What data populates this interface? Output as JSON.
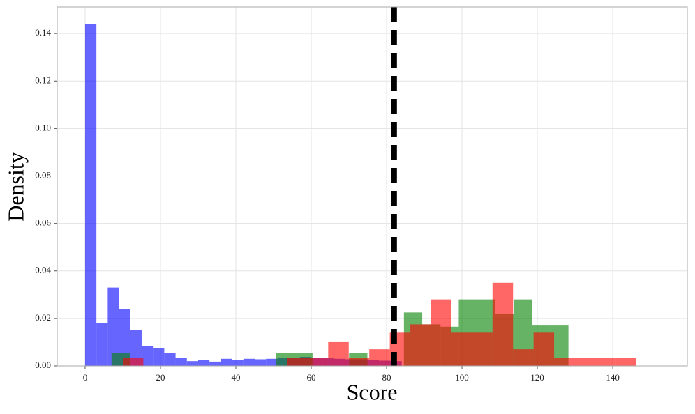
{
  "chart_data": {
    "type": "histogram",
    "x_label": "Score",
    "y_label": "Density",
    "xlim": [
      -7.4,
      159.8
    ],
    "ylim": [
      0,
      0.1512
    ],
    "xticks": [
      0,
      20,
      40,
      60,
      80,
      100,
      120,
      140
    ],
    "yticks": [
      {
        "value": 0,
        "label": "0.00"
      },
      0.02,
      0.04,
      0.06,
      0.08,
      {
        "value": 0.1,
        "label": "0.10"
      },
      0.12,
      0.14
    ],
    "grid": true,
    "alpha": 0.6,
    "reference_line": {
      "x": 82,
      "color": "#000000",
      "style": "dashed"
    },
    "series": [
      {
        "color": "#0000ff",
        "bins": [
          0,
          3,
          6,
          9,
          12,
          15,
          18,
          21,
          24,
          27,
          30,
          33,
          36,
          39,
          42,
          45,
          48,
          51,
          54,
          57,
          60,
          63,
          66,
          69,
          72,
          75,
          78,
          81,
          84
        ],
        "values": [
          0.144,
          0.018,
          0.033,
          0.024,
          0.015,
          0.0085,
          0.0075,
          0.0055,
          0.0035,
          0.002,
          0.0025,
          0.0018,
          0.003,
          0.0025,
          0.003,
          0.0028,
          0.003,
          0.0035,
          0.0035,
          0.0038,
          0.0035,
          0.0032,
          0.003,
          0.0028,
          0.0028,
          0.0025,
          0.0022,
          0.002
        ]
      },
      {
        "color": "#008000",
        "bins": [
          7,
          11.85,
          16.7,
          21.55,
          26.4,
          31.25,
          36.1,
          40.95,
          45.8,
          50.65,
          55.5,
          60.35,
          65.2,
          70.05,
          74.9,
          79.75,
          84.6,
          89.45,
          94.3,
          99.15,
          104,
          108.85,
          113.7,
          118.55,
          123.4,
          128.25
        ],
        "values": [
          0.0055,
          0,
          0,
          0,
          0,
          0,
          0,
          0,
          0,
          0.0055,
          0.0055,
          0,
          0,
          0.0055,
          0,
          0,
          0.0225,
          0.0175,
          0.0165,
          0.028,
          0.028,
          0.022,
          0.028,
          0.017,
          0.017
        ]
      },
      {
        "color": "#ff0000",
        "bins": [
          10,
          15.45,
          20.9,
          26.35,
          31.8,
          37.25,
          42.7,
          48.15,
          53.6,
          59.05,
          64.5,
          69.95,
          75.4,
          80.85,
          86.3,
          91.75,
          97.2,
          102.65,
          108.1,
          113.55,
          119,
          124.45,
          129.9,
          135.35,
          140.8,
          146.25
        ],
        "values": [
          0.0035,
          0,
          0,
          0,
          0,
          0,
          0,
          0,
          0.0035,
          0.0035,
          0.0103,
          0.0035,
          0.007,
          0.014,
          0.0175,
          0.028,
          0.014,
          0.014,
          0.035,
          0.007,
          0.014,
          0.0035,
          0.0035,
          0.0035,
          0.0035
        ]
      }
    ]
  }
}
